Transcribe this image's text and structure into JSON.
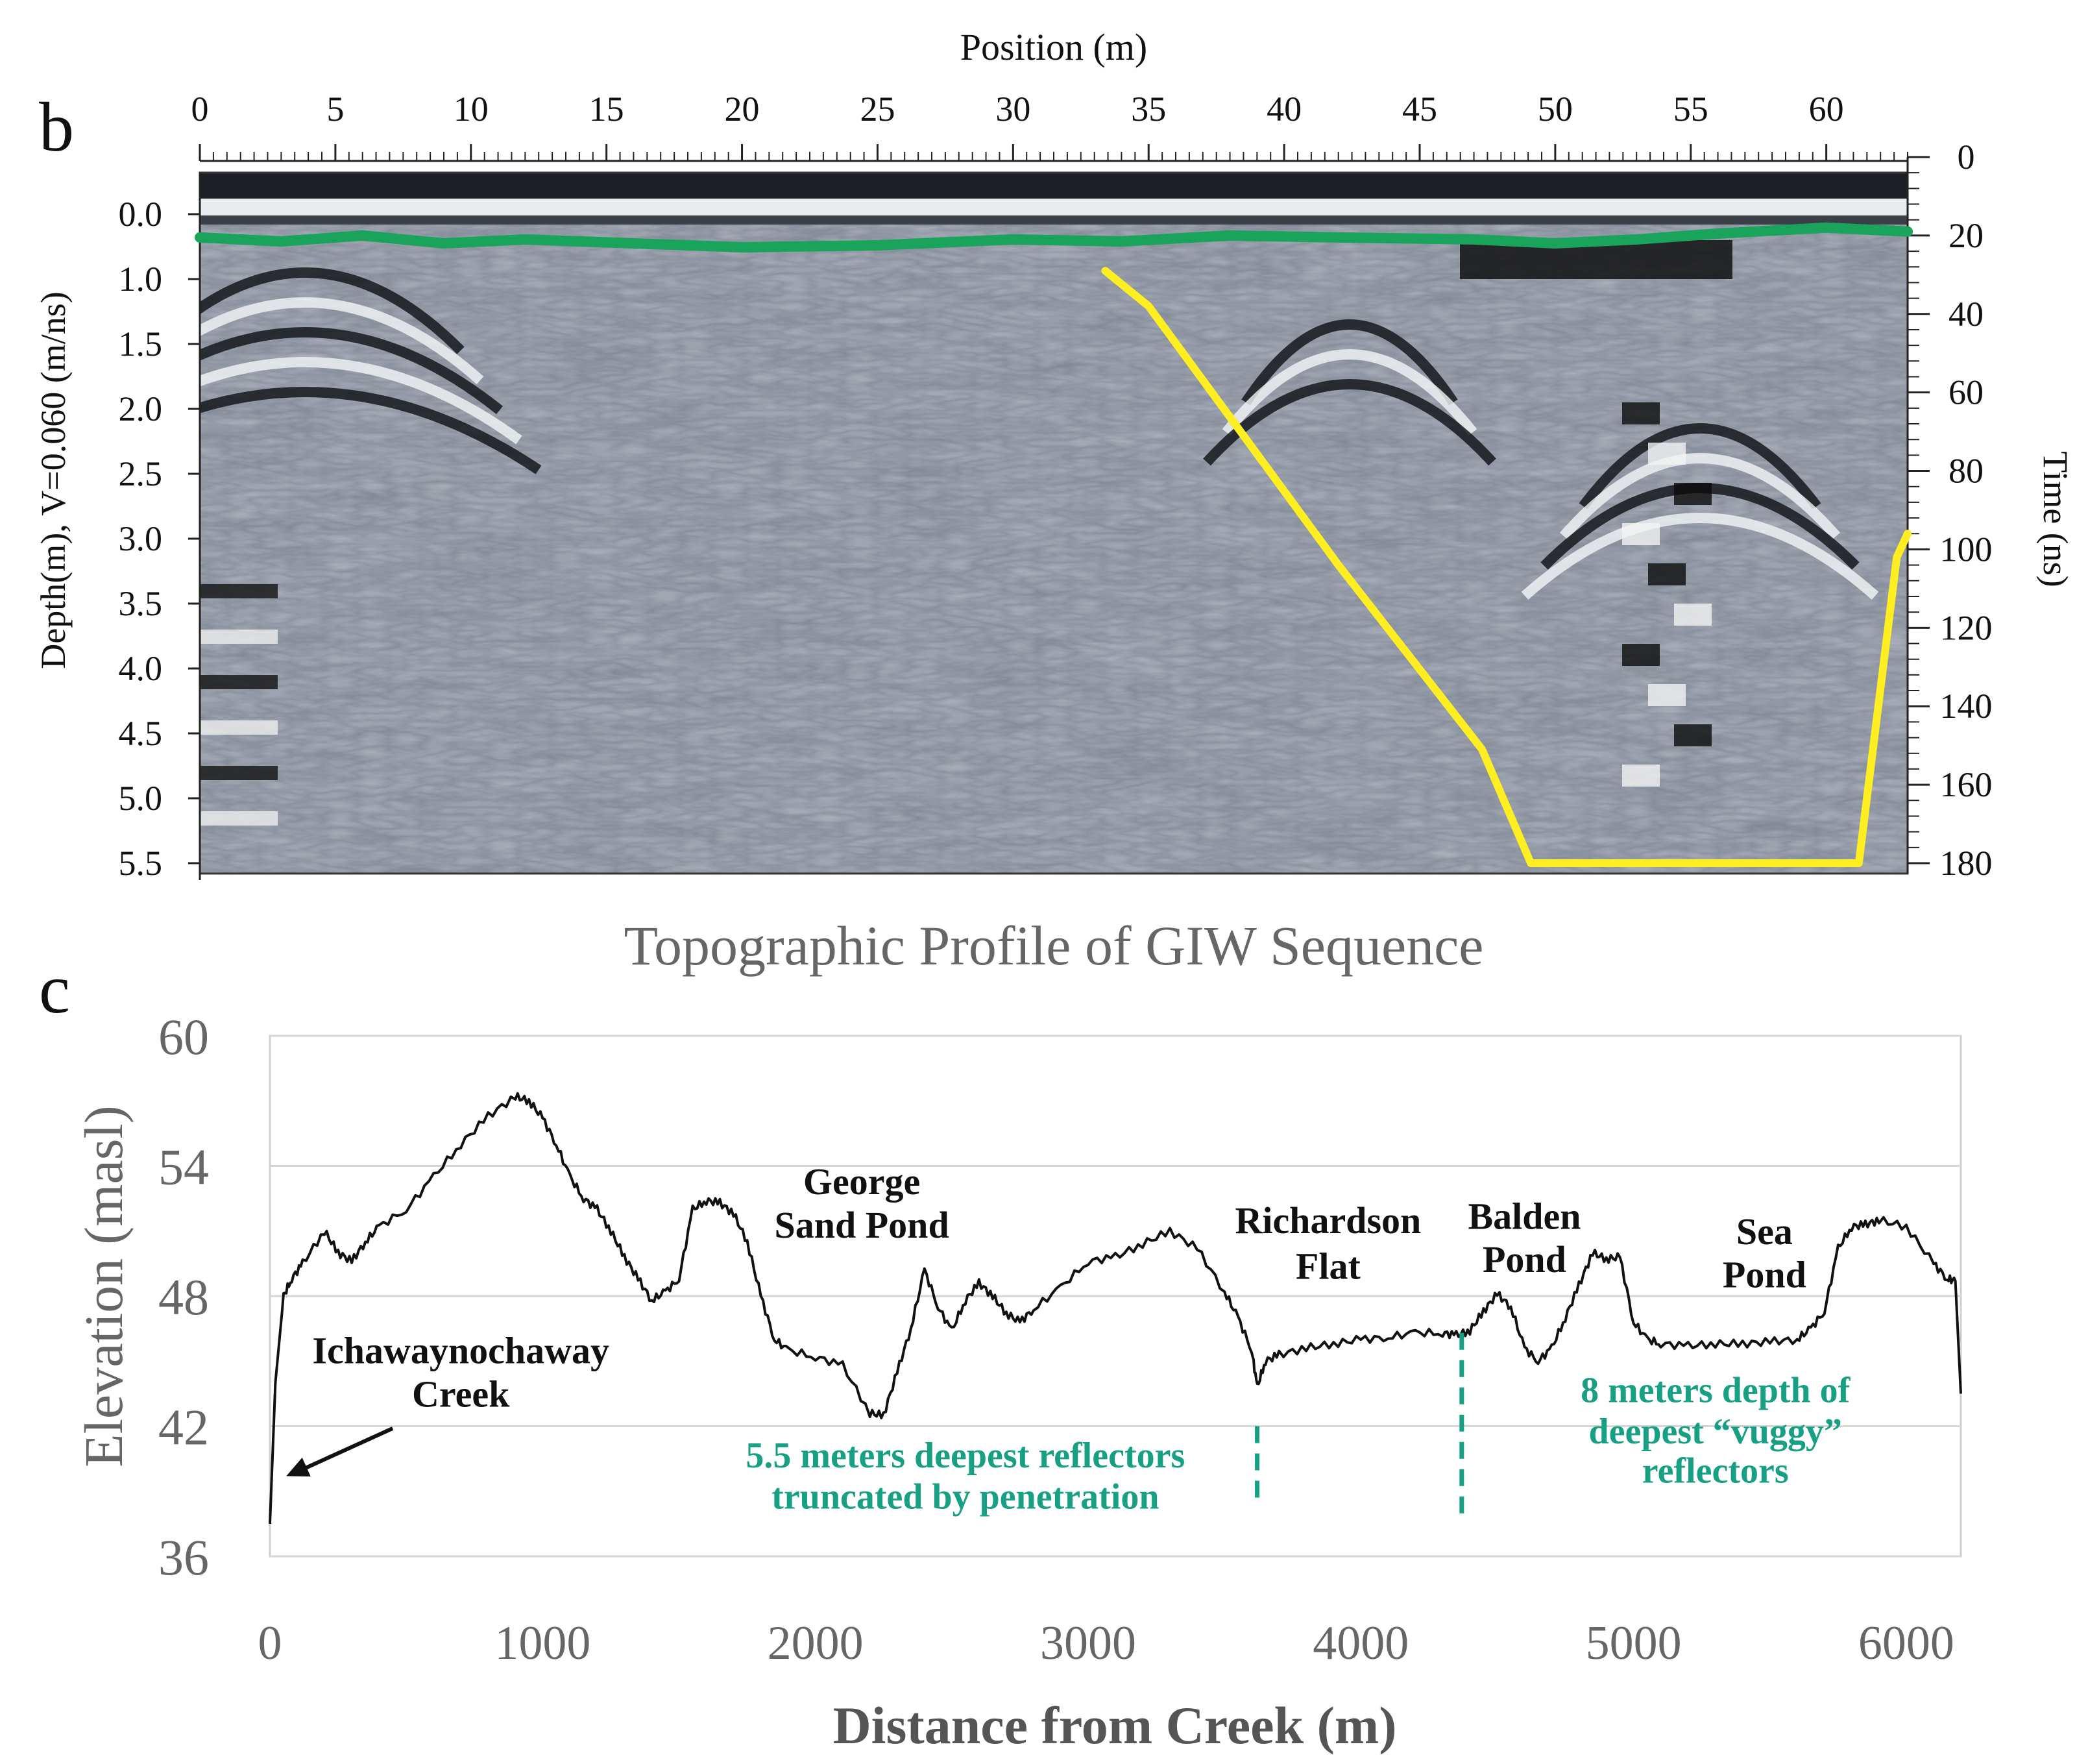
{
  "chart_data": [
    {
      "type": "radargram",
      "panel_label": "b",
      "title": "Position (m)",
      "xlabel": "Position (m)",
      "ylabel_left": "Depth(m), V=0.060 (m/ns)",
      "ylabel_right": "Time (ns)",
      "xlim": [
        0,
        63
      ],
      "depth_lim": [
        0.0,
        5.5
      ],
      "time_lim": [
        0,
        180
      ],
      "x_ticks": [
        "0",
        "5",
        "10",
        "15",
        "20",
        "25",
        "30",
        "35",
        "40",
        "45",
        "50",
        "55",
        "60"
      ],
      "depth_ticks": [
        "0.0",
        "1.0",
        "1.5",
        "2.0",
        "2.5",
        "3.0",
        "3.5",
        "4.0",
        "4.5",
        "5.0",
        "5.5"
      ],
      "time_ticks": [
        "0",
        "20",
        "40",
        "60",
        "80",
        "100",
        "120",
        "140",
        "160",
        "180"
      ],
      "series": [
        {
          "name": "green surface trace",
          "color": "#1aa35a",
          "points_pos_time": [
            [
              0,
              20.5
            ],
            [
              3,
              21.5
            ],
            [
              6,
              20
            ],
            [
              9,
              22
            ],
            [
              12,
              21
            ],
            [
              16,
              22
            ],
            [
              20,
              23
            ],
            [
              25,
              22.5
            ],
            [
              30,
              21
            ],
            [
              34,
              21.5
            ],
            [
              38,
              20
            ],
            [
              42,
              20.5
            ],
            [
              47,
              21
            ],
            [
              50,
              22
            ],
            [
              53,
              21
            ],
            [
              56,
              19.5
            ],
            [
              60,
              18
            ],
            [
              63,
              19
            ]
          ]
        },
        {
          "name": "yellow interpretation line",
          "color": "#ffee22",
          "points_pos_time": [
            [
              33.4,
              29
            ],
            [
              35,
              38
            ],
            [
              42,
              104
            ],
            [
              47.3,
              151
            ],
            [
              49.1,
              180
            ],
            [
              61.2,
              180
            ],
            [
              62.6,
              102
            ],
            [
              63,
              96
            ]
          ]
        }
      ]
    },
    {
      "type": "line",
      "panel_label": "c",
      "title": "Topographic Profile of GIW Sequence",
      "xlabel": "Distance from Creek (m)",
      "ylabel": "Elevation (masl)",
      "xlim": [
        0,
        6200
      ],
      "ylim": [
        36,
        60
      ],
      "x_ticks": [
        "0",
        "1000",
        "2000",
        "3000",
        "4000",
        "5000",
        "6000"
      ],
      "y_ticks": [
        "36",
        "42",
        "48",
        "54",
        "60"
      ],
      "grid": true,
      "series": [
        {
          "name": "elevation",
          "color": "#111111",
          "x": [
            0,
            20,
            50,
            80,
            120,
            200,
            250,
            300,
            350,
            400,
            500,
            600,
            700,
            800,
            900,
            950,
            1000,
            1050,
            1100,
            1150,
            1200,
            1250,
            1300,
            1350,
            1400,
            1450,
            1500,
            1550,
            1600,
            1650,
            1700,
            1750,
            1800,
            1850,
            1900,
            2000,
            2100,
            2200,
            2250,
            2300,
            2350,
            2400,
            2450,
            2500,
            2550,
            2600,
            2650,
            2700,
            2750,
            2800,
            2900,
            3000,
            3100,
            3200,
            3300,
            3400,
            3500,
            3550,
            3600,
            3620,
            3650,
            3700,
            3800,
            3900,
            4000,
            4100,
            4200,
            4300,
            4350,
            4400,
            4450,
            4500,
            4550,
            4600,
            4650,
            4700,
            4750,
            4800,
            4850,
            4900,
            4950,
            5000,
            5050,
            5100,
            5200,
            5300,
            5400,
            5500,
            5600,
            5650,
            5700,
            5750,
            5800,
            5850,
            5900,
            6000,
            6100,
            6150,
            6180,
            6200
          ],
          "values": [
            37.5,
            44,
            48,
            48.8,
            49.5,
            51,
            50,
            49.6,
            50.5,
            51.2,
            52,
            53.5,
            55,
            56.3,
            57.2,
            57,
            56.2,
            55,
            53.5,
            52.5,
            52,
            51,
            49.8,
            48.8,
            47.8,
            48.2,
            48.8,
            52,
            52.4,
            52.3,
            51.8,
            50.5,
            48,
            46,
            45.5,
            45.2,
            44.8,
            42.6,
            42.5,
            44.5,
            46.5,
            49.2,
            47.5,
            46.4,
            47.8,
            48.6,
            48,
            47.2,
            46.8,
            47.4,
            48.4,
            49.6,
            49.8,
            50.4,
            51,
            50.2,
            48.2,
            47,
            45.5,
            43.8,
            45,
            45.3,
            45.6,
            45.8,
            46,
            46.1,
            46.3,
            46.3,
            46.2,
            46.4,
            47.3,
            48.1,
            47.5,
            45.6,
            45,
            45.6,
            47,
            48.5,
            50,
            49.7,
            49.8,
            46.8,
            46,
            45.8,
            45.7,
            45.8,
            45.8,
            45.9,
            46,
            46.5,
            47.3,
            50.2,
            51.2,
            51.3,
            51.5,
            51.2,
            49.5,
            48.8,
            48.7,
            43.5
          ]
        }
      ],
      "annotations": [
        {
          "text": "George",
          "x": 2170,
          "y": 52.7
        },
        {
          "text": "Sand Pond",
          "x": 2170,
          "y": 50.7
        },
        {
          "text": "Richardson",
          "x": 3880,
          "y": 50.9
        },
        {
          "text": "Flat",
          "x": 3880,
          "y": 48.8
        },
        {
          "text": "Balden",
          "x": 4600,
          "y": 51.1
        },
        {
          "text": "Pond",
          "x": 4600,
          "y": 49.1
        },
        {
          "text": "Sea",
          "x": 5480,
          "y": 50.4
        },
        {
          "text": "Pond",
          "x": 5480,
          "y": 48.4
        },
        {
          "text": "Ichawaynochaway",
          "x": 700,
          "y": 44.9
        },
        {
          "text": "Creek",
          "x": 700,
          "y": 42.9
        }
      ],
      "green_notes": [
        {
          "text": "5.5 meters deepest reflectors",
          "x": 2550,
          "y": 40.1
        },
        {
          "text": "truncated by penetration",
          "x": 2550,
          "y": 38.2
        },
        {
          "text": "8 meters depth of",
          "x": 5300,
          "y": 43.1
        },
        {
          "text": "deepest “vuggy”",
          "x": 5300,
          "y": 41.2
        },
        {
          "text": "reflectors",
          "x": 5300,
          "y": 39.4
        }
      ],
      "dashed_markers": [
        {
          "x": 3620,
          "from": 42.0,
          "to": 38.6
        },
        {
          "x": 4370,
          "from": 46.3,
          "to": 37.9
        }
      ],
      "arrow": {
        "from": [
          450,
          41.9
        ],
        "to": [
          60,
          39.7
        ]
      },
      "note_color": "#17a083"
    }
  ]
}
